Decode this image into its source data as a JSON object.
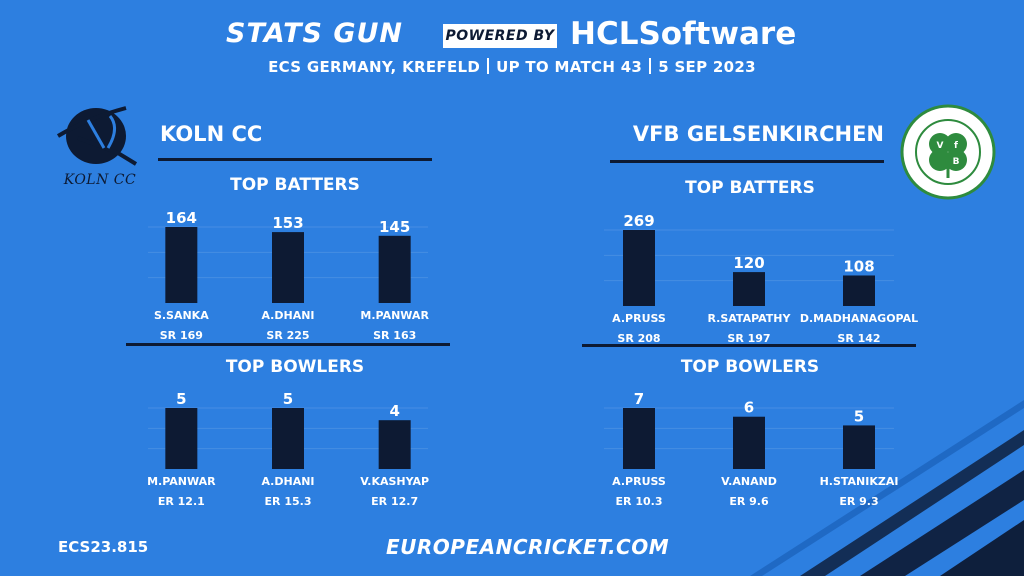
{
  "header": {
    "brand": "STATS GUN",
    "powered_by": "POWERED BY",
    "sponsor": "HCLSoftware",
    "subtitle_parts": [
      "ECS GERMANY, KREFELD",
      "UP TO MATCH 43",
      "5 SEP 2023"
    ]
  },
  "teams": {
    "left": {
      "name": "KOLN CC",
      "logo_text": "KOLN CC"
    },
    "right": {
      "name": "VFB GELSENKIRCHEN",
      "logo_text_outer": "Verein für Bewegungsspiele 07/13 e.V.",
      "logo_text_bottom": "Gelsenkirchen",
      "logo_letters": "VfB"
    }
  },
  "sections": {
    "left_batters": "TOP BATTERS",
    "left_bowlers": "TOP BOWLERS",
    "right_batters": "TOP BATTERS",
    "right_bowlers": "TOP BOWLERS"
  },
  "chart_data": [
    {
      "type": "bar",
      "title": "TOP BATTERS",
      "team": "KOLN CC",
      "categories": [
        "S.SANKA",
        "A.DHANI",
        "M.PANWAR"
      ],
      "values": [
        164,
        153,
        145
      ],
      "sublabels": [
        "SR 169",
        "SR 225",
        "SR 163"
      ],
      "ylim": [
        0,
        164
      ]
    },
    {
      "type": "bar",
      "title": "TOP BOWLERS",
      "team": "KOLN CC",
      "categories": [
        "M.PANWAR",
        "A.DHANI",
        "V.KASHYAP"
      ],
      "values": [
        5,
        5,
        4
      ],
      "sublabels": [
        "ER 12.1",
        "ER 15.3",
        "ER 12.7"
      ],
      "ylim": [
        0,
        5
      ]
    },
    {
      "type": "bar",
      "title": "TOP BATTERS",
      "team": "VFB GELSENKIRCHEN",
      "categories": [
        "A.PRUSS",
        "R.SATAPATHY",
        "D.MADHANAGOPAL"
      ],
      "values": [
        269,
        120,
        108
      ],
      "sublabels": [
        "SR 208",
        "SR 197",
        "SR 142"
      ],
      "ylim": [
        0,
        269
      ]
    },
    {
      "type": "bar",
      "title": "TOP BOWLERS",
      "team": "VFB GELSENKIRCHEN",
      "categories": [
        "A.PRUSS",
        "V.ANAND",
        "H.STANIKZAI"
      ],
      "values": [
        7,
        6,
        5
      ],
      "sublabels": [
        "ER 10.3",
        "ER 9.6",
        "ER 9.3"
      ],
      "ylim": [
        0,
        7
      ]
    }
  ],
  "footer": {
    "code": "ECS23.815",
    "url": "EUROPEANCRICKET.COM"
  },
  "colors": {
    "background": "#2d7fe0",
    "bar": "#0d1a33",
    "text": "#ffffff"
  }
}
